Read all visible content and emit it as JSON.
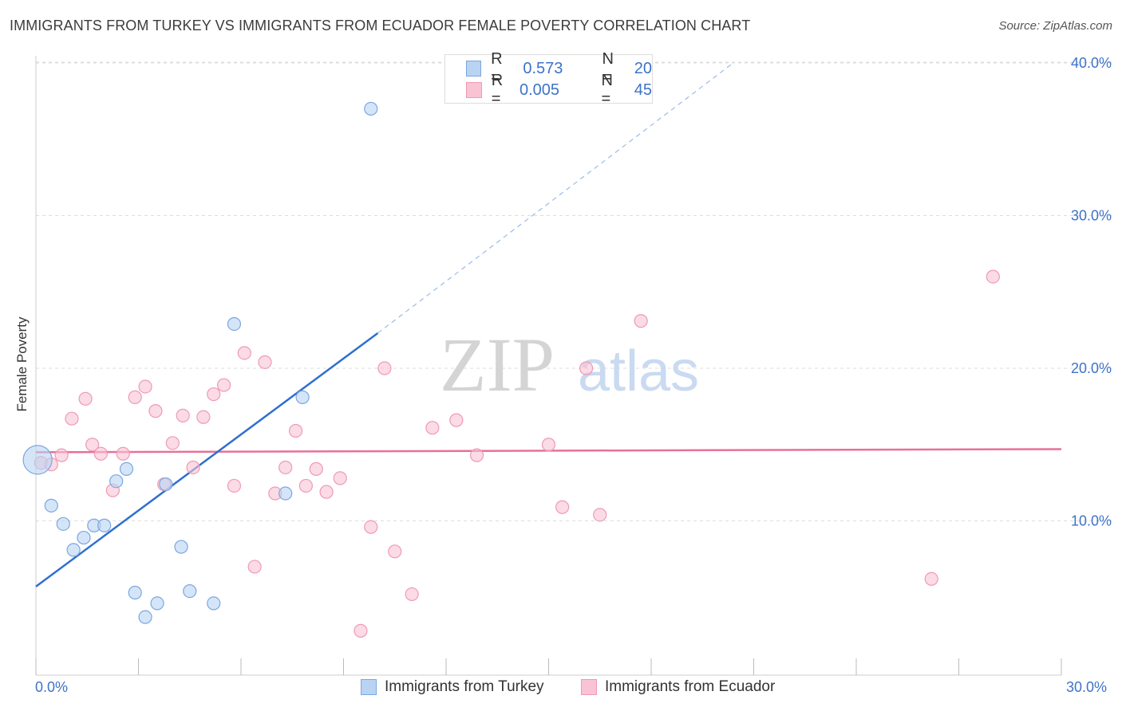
{
  "title": "IMMIGRANTS FROM TURKEY VS IMMIGRANTS FROM ECUADOR FEMALE POVERTY CORRELATION CHART",
  "source": "Source: ZipAtlas.com",
  "watermark": {
    "zip": "ZIP",
    "atlas": "atlas"
  },
  "legend": {
    "turkey": {
      "r_label": "R =",
      "r_value": "0.573",
      "n_label": "N =",
      "n_value": "20"
    },
    "ecuador": {
      "r_label": "R =",
      "r_value": "0.005",
      "n_label": "N =",
      "n_value": "45"
    }
  },
  "colors": {
    "turkey_fill": "#b9d3f3",
    "turkey_stroke": "#7aa7e0",
    "turkey_line": "#2e6fd0",
    "ecuador_fill": "#f9c3d4",
    "ecuador_stroke": "#ef9ab5",
    "ecuador_line": "#e8709a",
    "tick_label": "#3d73c9",
    "grid": "#dddddd"
  },
  "chart_data": {
    "type": "scatter",
    "title": "IMMIGRANTS FROM TURKEY VS IMMIGRANTS FROM ECUADOR FEMALE POVERTY CORRELATION CHART",
    "xlabel": "",
    "ylabel": "Female Poverty",
    "xlim": [
      0,
      30
    ],
    "ylim": [
      0,
      42
    ],
    "x_tick_labels": [
      "0.0%",
      "30.0%"
    ],
    "y_ticks": [
      10,
      20,
      30,
      40
    ],
    "y_tick_labels": [
      "10.0%",
      "20.0%",
      "30.0%",
      "40.0%"
    ],
    "grid": true,
    "legend_position": "top-center",
    "series": [
      {
        "name": "Immigrants from Turkey",
        "points": [
          [
            0.05,
            14.0
          ],
          [
            0.45,
            11.0
          ],
          [
            0.8,
            9.8
          ],
          [
            1.1,
            8.1
          ],
          [
            1.4,
            8.9
          ],
          [
            1.7,
            9.7
          ],
          [
            2.0,
            9.7
          ],
          [
            2.35,
            12.6
          ],
          [
            2.65,
            13.4
          ],
          [
            2.9,
            5.3
          ],
          [
            3.2,
            3.7
          ],
          [
            3.55,
            4.6
          ],
          [
            3.8,
            12.4
          ],
          [
            4.25,
            8.3
          ],
          [
            4.5,
            5.4
          ],
          [
            5.2,
            4.6
          ],
          [
            5.8,
            22.9
          ],
          [
            7.3,
            11.8
          ],
          [
            7.8,
            18.1
          ],
          [
            9.8,
            37.0
          ]
        ],
        "trend": {
          "x1": 0,
          "y1": 5.7,
          "x2": 10.0,
          "y2": 22.3,
          "dashed_to_x": 20.4,
          "dashed_to_y": 40.0
        }
      },
      {
        "name": "Immigrants from Ecuador",
        "points": [
          [
            0.15,
            13.8
          ],
          [
            0.45,
            13.7
          ],
          [
            0.75,
            14.3
          ],
          [
            1.05,
            16.7
          ],
          [
            1.45,
            18.0
          ],
          [
            1.65,
            15.0
          ],
          [
            1.9,
            14.4
          ],
          [
            2.25,
            12.0
          ],
          [
            2.55,
            14.4
          ],
          [
            2.9,
            18.1
          ],
          [
            3.2,
            18.8
          ],
          [
            3.5,
            17.2
          ],
          [
            3.75,
            12.4
          ],
          [
            4.0,
            15.1
          ],
          [
            4.3,
            16.9
          ],
          [
            4.6,
            13.5
          ],
          [
            4.9,
            16.8
          ],
          [
            5.2,
            18.3
          ],
          [
            5.5,
            18.9
          ],
          [
            5.8,
            12.3
          ],
          [
            6.1,
            21.0
          ],
          [
            6.4,
            7.0
          ],
          [
            6.7,
            20.4
          ],
          [
            7.0,
            11.8
          ],
          [
            7.3,
            13.5
          ],
          [
            7.6,
            15.9
          ],
          [
            7.9,
            12.3
          ],
          [
            8.2,
            13.4
          ],
          [
            8.5,
            11.9
          ],
          [
            8.9,
            12.8
          ],
          [
            9.5,
            2.8
          ],
          [
            9.8,
            9.6
          ],
          [
            10.2,
            20.0
          ],
          [
            10.5,
            8.0
          ],
          [
            11.0,
            5.2
          ],
          [
            11.6,
            16.1
          ],
          [
            12.3,
            16.6
          ],
          [
            12.9,
            14.3
          ],
          [
            15.0,
            15.0
          ],
          [
            15.4,
            10.9
          ],
          [
            16.1,
            20.0
          ],
          [
            16.5,
            10.4
          ],
          [
            17.7,
            23.1
          ],
          [
            26.2,
            6.2
          ],
          [
            28.0,
            26.0
          ]
        ],
        "trend": {
          "x1": 0,
          "y1": 14.5,
          "x2": 30,
          "y2": 14.7
        }
      }
    ]
  }
}
